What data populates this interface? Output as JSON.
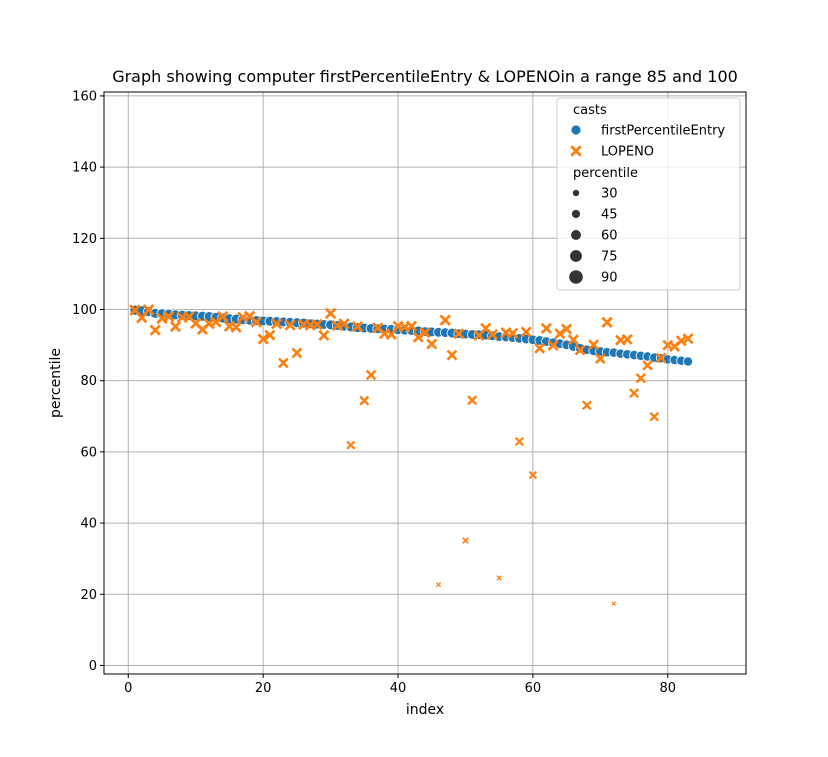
{
  "chart_data": {
    "type": "scatter",
    "title": "Graph showing computer firstPercentileEntry & LOPENOin a range 85 and 100",
    "xlabel": "index",
    "ylabel": "percentile",
    "xlim": [
      -3.6,
      91.6
    ],
    "ylim": [
      -2.4,
      161.1
    ],
    "x_ticks": [
      0,
      20,
      40,
      60,
      80
    ],
    "y_ticks": [
      0,
      20,
      40,
      60,
      80,
      100,
      120,
      140,
      160
    ],
    "grid": true,
    "legend": {
      "placement": "top-right",
      "hue_title": "casts",
      "size_title": "percentile",
      "size_levels": [
        30,
        45,
        60,
        75,
        90
      ]
    },
    "series": [
      {
        "name": "firstPercentileEntry",
        "color": "#1f77b4",
        "marker": "circle",
        "x": [
          1,
          2,
          3,
          4,
          5,
          6,
          7,
          8,
          9,
          10,
          11,
          12,
          13,
          14,
          15,
          16,
          17,
          18,
          19,
          20,
          21,
          22,
          23,
          24,
          25,
          26,
          27,
          28,
          29,
          30,
          31,
          32,
          33,
          34,
          35,
          36,
          37,
          38,
          39,
          40,
          41,
          42,
          43,
          44,
          45,
          46,
          47,
          48,
          49,
          50,
          51,
          52,
          53,
          54,
          55,
          56,
          57,
          58,
          59,
          60,
          61,
          62,
          63,
          64,
          65,
          66,
          67,
          68,
          69,
          70,
          71,
          72,
          73,
          74,
          75,
          76,
          77,
          78,
          79,
          80,
          81,
          82,
          83
        ],
        "y": [
          99.8,
          99.6,
          99.4,
          98.9,
          98.8,
          98.7,
          98.5,
          98.4,
          98.3,
          98.2,
          98.1,
          98.0,
          97.8,
          97.6,
          97.4,
          97.3,
          97.1,
          97.0,
          96.9,
          96.8,
          96.7,
          96.6,
          96.5,
          96.4,
          96.3,
          96.2,
          96.0,
          95.9,
          95.8,
          95.7,
          95.5,
          95.3,
          95.1,
          94.9,
          94.8,
          94.7,
          94.6,
          94.5,
          94.4,
          94.3,
          94.2,
          94.1,
          94.0,
          93.8,
          93.7,
          93.6,
          93.5,
          93.4,
          93.2,
          93.1,
          93.0,
          92.9,
          92.8,
          92.6,
          92.4,
          92.3,
          92.1,
          91.9,
          91.7,
          91.5,
          91.3,
          91.0,
          90.7,
          90.4,
          90.1,
          89.6,
          89.1,
          88.7,
          88.4,
          88.2,
          88.0,
          87.9,
          87.6,
          87.4,
          87.2,
          87.0,
          86.8,
          86.5,
          86.3,
          86.0,
          85.8,
          85.6,
          85.4
        ],
        "size": [
          99.8,
          99.6,
          99.4,
          98.9,
          98.8,
          98.7,
          98.5,
          98.4,
          98.3,
          98.2,
          98.1,
          98.0,
          97.8,
          97.6,
          97.4,
          97.3,
          97.1,
          97.0,
          96.9,
          96.8,
          96.7,
          96.6,
          96.5,
          96.4,
          96.3,
          96.2,
          96.0,
          95.9,
          95.8,
          95.7,
          95.5,
          95.3,
          95.1,
          94.9,
          94.8,
          94.7,
          94.6,
          94.5,
          94.4,
          94.3,
          94.2,
          94.1,
          94.0,
          93.8,
          93.7,
          93.6,
          93.5,
          93.4,
          93.2,
          93.1,
          93.0,
          92.9,
          92.8,
          92.6,
          92.4,
          92.3,
          92.1,
          91.9,
          91.7,
          91.5,
          91.3,
          91.0,
          90.7,
          90.4,
          90.1,
          89.6,
          89.1,
          88.7,
          88.4,
          88.2,
          88.0,
          87.9,
          87.6,
          87.4,
          87.2,
          87.0,
          86.8,
          86.5,
          86.3,
          86.0,
          85.8,
          85.6,
          85.4
        ]
      },
      {
        "name": "LOPENO",
        "color": "#ff7f0e",
        "marker": "x",
        "x": [
          1,
          2,
          3,
          4,
          5,
          6,
          7,
          8,
          9,
          10,
          11,
          12,
          13,
          14,
          15,
          16,
          17,
          18,
          19,
          20,
          21,
          22,
          23,
          24,
          25,
          26,
          27,
          28,
          29,
          30,
          31,
          32,
          33,
          34,
          35,
          36,
          37,
          38,
          39,
          40,
          41,
          42,
          43,
          44,
          45,
          46,
          47,
          48,
          49,
          50,
          51,
          52,
          53,
          54,
          55,
          56,
          57,
          58,
          59,
          60,
          61,
          62,
          63,
          64,
          65,
          66,
          67,
          68,
          69,
          70,
          71,
          72,
          73,
          74,
          75,
          76,
          77,
          78,
          79,
          80,
          81,
          82,
          83
        ],
        "y": [
          99.8,
          97.7,
          99.9,
          94.2,
          97.5,
          98.0,
          95.2,
          97.8,
          97.9,
          96.1,
          94.4,
          96.0,
          96.5,
          98.0,
          95.3,
          95.0,
          97.8,
          98.1,
          96.5,
          91.7,
          92.8,
          96.0,
          85.0,
          95.6,
          87.8,
          95.8,
          95.6,
          95.8,
          92.7,
          98.9,
          95.5,
          96.0,
          61.9,
          95.2,
          74.4,
          81.6,
          94.8,
          93.2,
          93.0,
          95.3,
          95.0,
          95.3,
          92.2,
          93.5,
          90.3,
          22.7,
          97.0,
          87.2,
          93.2,
          35.1,
          74.5,
          92.7,
          94.7,
          93.0,
          24.6,
          93.5,
          93.3,
          62.9,
          93.7,
          53.5,
          89.1,
          94.7,
          89.9,
          93.2,
          94.5,
          91.5,
          88.6,
          73.1,
          90.1,
          86.2,
          96.4,
          17.4,
          91.4,
          91.6,
          76.5,
          80.7,
          84.3,
          69.9,
          86.4,
          90.0,
          89.6,
          91.2,
          91.8
        ],
        "size": [
          99.8,
          97.7,
          99.9,
          94.2,
          97.5,
          98.0,
          95.2,
          97.8,
          97.9,
          96.1,
          94.4,
          96.0,
          96.5,
          98.0,
          95.3,
          95.0,
          97.8,
          98.1,
          96.5,
          91.7,
          92.8,
          96.0,
          85.0,
          95.6,
          87.8,
          95.8,
          95.6,
          95.8,
          92.7,
          98.9,
          95.5,
          96.0,
          61.9,
          95.2,
          74.4,
          81.6,
          94.8,
          93.2,
          93.0,
          95.3,
          95.0,
          95.3,
          92.2,
          93.5,
          90.3,
          22.7,
          97.0,
          87.2,
          93.2,
          35.1,
          74.5,
          92.7,
          94.7,
          93.0,
          24.6,
          93.5,
          93.3,
          62.9,
          93.7,
          53.5,
          89.1,
          94.7,
          89.9,
          93.2,
          94.5,
          91.5,
          88.6,
          73.1,
          90.1,
          86.2,
          96.4,
          17.4,
          91.4,
          91.6,
          76.5,
          80.7,
          84.3,
          69.9,
          86.4,
          90.0,
          89.6,
          91.2,
          91.8
        ]
      }
    ]
  }
}
